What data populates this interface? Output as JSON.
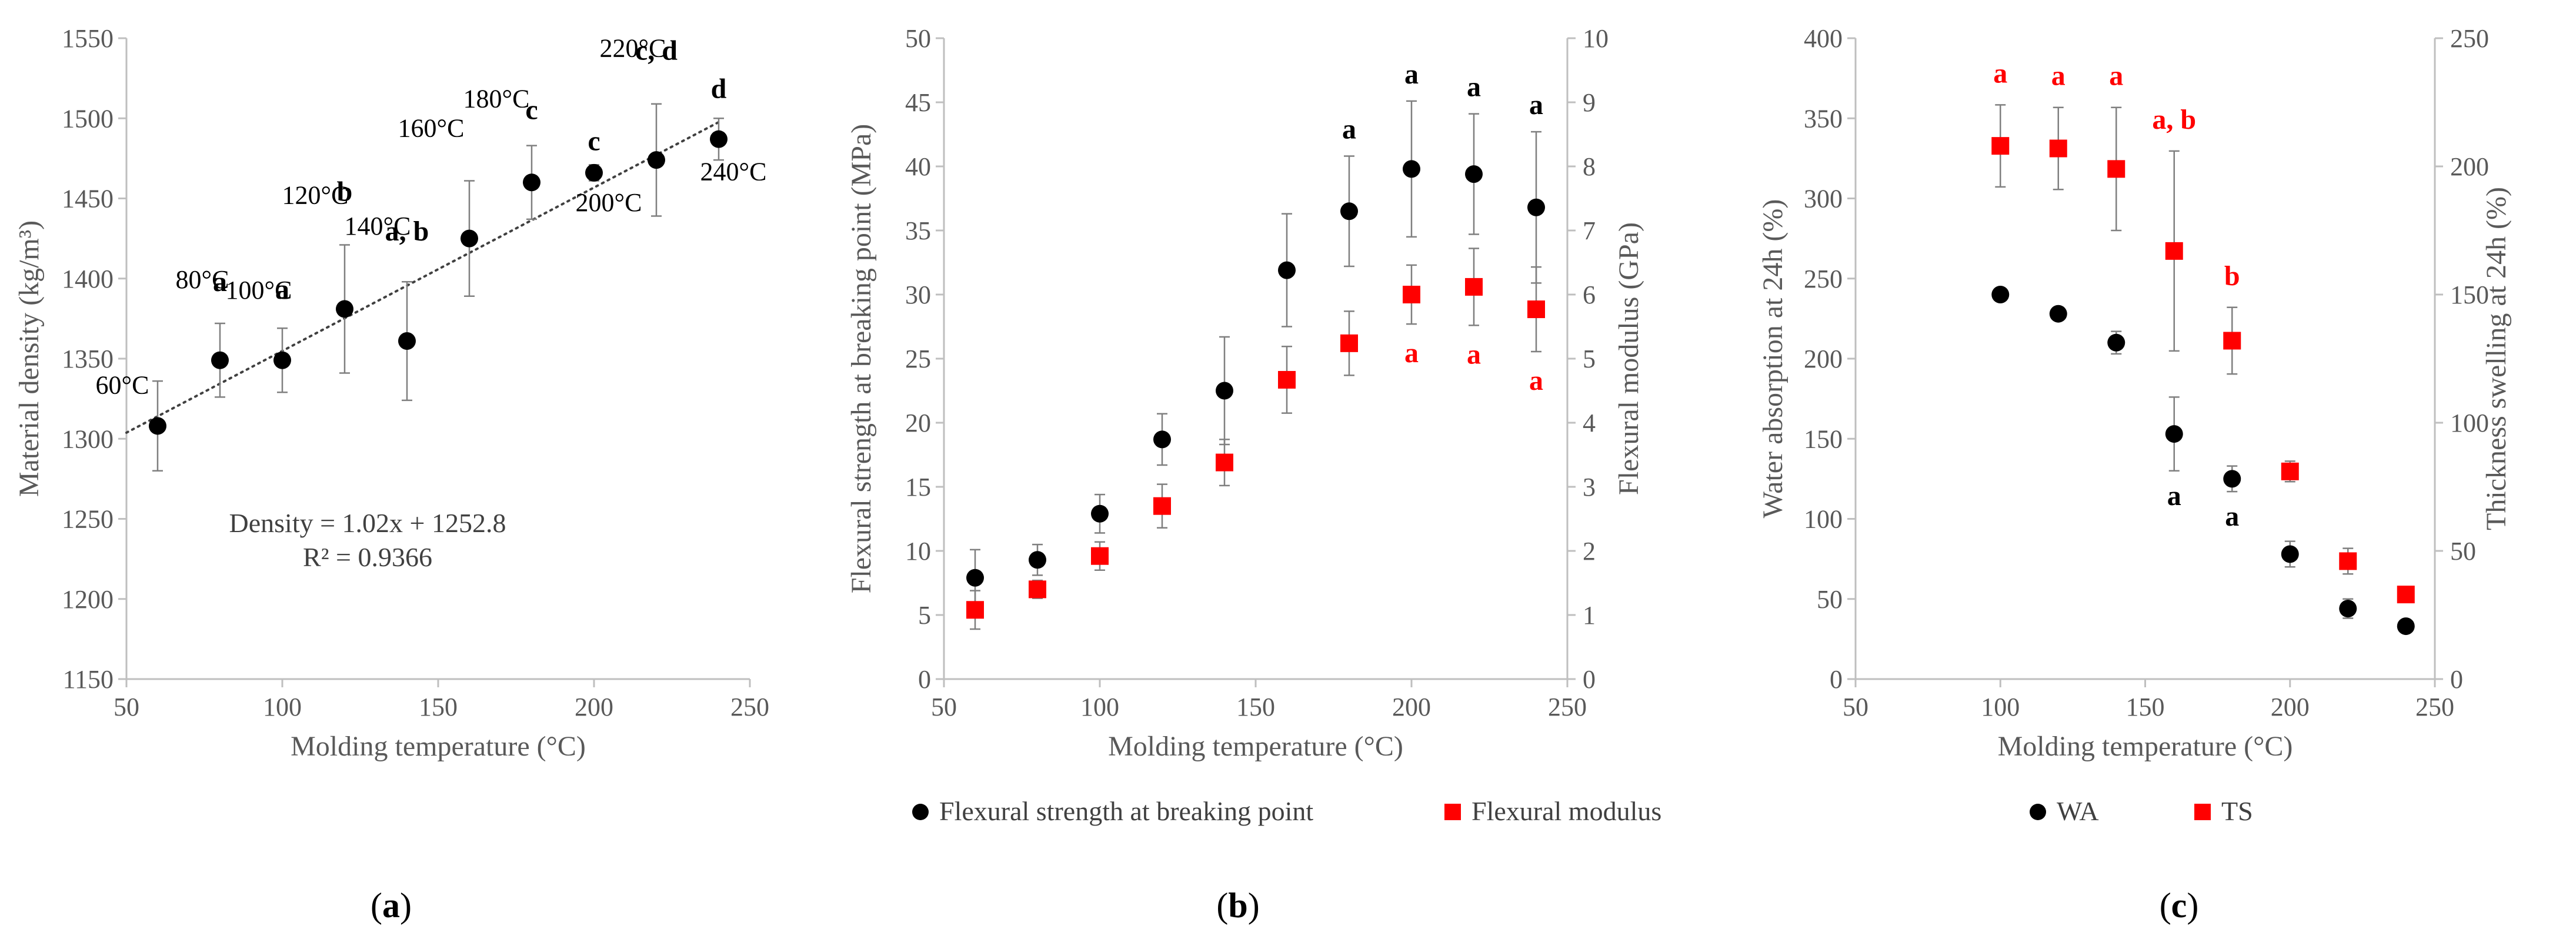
{
  "chart_data": [
    {
      "type": "scatter",
      "panel_label": "a",
      "xlabel": "Molding temperature (°C)",
      "ylabel": "Material density (kg/m³)",
      "xlim": [
        50,
        250
      ],
      "ylim": [
        1150,
        1550
      ],
      "x_ticks": [
        50,
        100,
        150,
        200,
        250
      ],
      "y_ticks": [
        1150,
        1200,
        1250,
        1300,
        1350,
        1400,
        1450,
        1500,
        1550
      ],
      "gridlines": false,
      "series": [
        {
          "x": [
            60,
            80,
            100,
            120,
            140,
            160,
            180,
            200,
            220,
            240
          ],
          "y": [
            1308,
            1349,
            1349,
            1381,
            1361,
            1425,
            1460,
            1466,
            1474,
            1487
          ],
          "error": [
            28,
            23,
            20,
            40,
            37,
            36,
            23,
            5,
            35,
            13
          ],
          "color": "#000000",
          "marker": "circle"
        }
      ],
      "trendline": {
        "slope": 1.02,
        "intercept": 1252.8,
        "style": "dotted"
      },
      "point_labels": [
        "60°C",
        "80°C",
        "100°C",
        "120°C",
        "140°C",
        "160°C",
        "180°C",
        "200°C",
        "220°C",
        "240°C"
      ],
      "significance_letters": [
        "",
        "a",
        "a",
        "b",
        "a, b",
        "",
        "c",
        "c",
        "c, d",
        "d"
      ],
      "annotation_lines": [
        "Density = 1.02x + 1252.8",
        "R² = 0.9366"
      ]
    },
    {
      "type": "scatter",
      "panel_label": "b",
      "xlabel": "Molding temperature (°C)",
      "ylabel": "Flexural strength at breaking point (MPa)",
      "y2label": "Flexural modulus (GPa)",
      "xlim": [
        50,
        250
      ],
      "ylim": [
        0,
        50
      ],
      "y2lim": [
        0,
        10
      ],
      "x_ticks": [
        50,
        100,
        150,
        200,
        250
      ],
      "y_ticks": [
        0,
        5,
        10,
        15,
        20,
        25,
        30,
        35,
        40,
        45,
        50
      ],
      "y2_ticks": [
        0,
        1,
        2,
        3,
        4,
        5,
        6,
        7,
        8,
        9,
        10
      ],
      "gridlines": false,
      "legend_position": "bottom",
      "series": [
        {
          "name": "Flexural strength at breaking point",
          "axis": "left",
          "x": [
            60,
            80,
            100,
            120,
            140,
            160,
            180,
            200,
            220,
            240
          ],
          "y": [
            7.9,
            9.3,
            12.9,
            18.7,
            22.5,
            31.9,
            36.5,
            39.8,
            39.4,
            36.8
          ],
          "error": [
            2.2,
            1.2,
            1.5,
            2.0,
            4.2,
            4.4,
            4.3,
            5.3,
            4.7,
            5.9
          ],
          "color": "#000000",
          "marker": "circle",
          "letters": [
            "",
            "",
            "",
            "",
            "",
            "",
            "a",
            "a",
            "a",
            "a"
          ]
        },
        {
          "name": "Flexural modulus",
          "axis": "right",
          "x": [
            60,
            80,
            100,
            120,
            140,
            160,
            180,
            200,
            220,
            240
          ],
          "y": [
            1.08,
            1.4,
            1.92,
            2.7,
            3.38,
            4.67,
            5.24,
            6.0,
            6.12,
            5.77
          ],
          "error": [
            0.3,
            0.14,
            0.22,
            0.34,
            0.36,
            0.52,
            0.5,
            0.46,
            0.6,
            0.66
          ],
          "color": "#ff0000",
          "marker": "square",
          "letters": [
            "",
            "",
            "",
            "",
            "",
            "",
            "",
            "a",
            "a",
            "a"
          ]
        }
      ]
    },
    {
      "type": "scatter",
      "panel_label": "c",
      "xlabel": "Molding temperature (°C)",
      "ylabel": "Water absorption at 24h (%)",
      "y2label": "Thickness swelling at 24h (%)",
      "xlim": [
        50,
        250
      ],
      "ylim": [
        0,
        400
      ],
      "y2lim": [
        0,
        250
      ],
      "x_ticks": [
        50,
        100,
        150,
        200,
        250
      ],
      "y_ticks": [
        0,
        50,
        100,
        150,
        200,
        250,
        300,
        350,
        400
      ],
      "y2_ticks": [
        0,
        50,
        100,
        150,
        200,
        250
      ],
      "gridlines": false,
      "legend_position": "bottom",
      "series": [
        {
          "name": "WA",
          "axis": "left",
          "x": [
            100,
            120,
            140,
            160,
            180,
            200,
            220,
            240
          ],
          "y": [
            240,
            228,
            210,
            153,
            125,
            78,
            44,
            33
          ],
          "error": [
            2,
            3,
            7,
            23,
            8,
            8,
            6,
            2
          ],
          "color": "#000000",
          "marker": "circle",
          "letters": [
            "",
            "",
            "",
            "a",
            "a",
            "",
            "",
            ""
          ]
        },
        {
          "name": "TS",
          "axis": "right",
          "x": [
            100,
            120,
            140,
            160,
            180,
            200,
            220,
            240
          ],
          "y": [
            208,
            207,
            199,
            167,
            132,
            81,
            46,
            33
          ],
          "error": [
            16,
            16,
            24,
            39,
            13,
            4,
            5,
            2
          ],
          "color": "#ff0000",
          "marker": "square",
          "letters": [
            "a",
            "a",
            "a",
            "a, b",
            "b",
            "",
            "",
            ""
          ]
        }
      ]
    }
  ]
}
